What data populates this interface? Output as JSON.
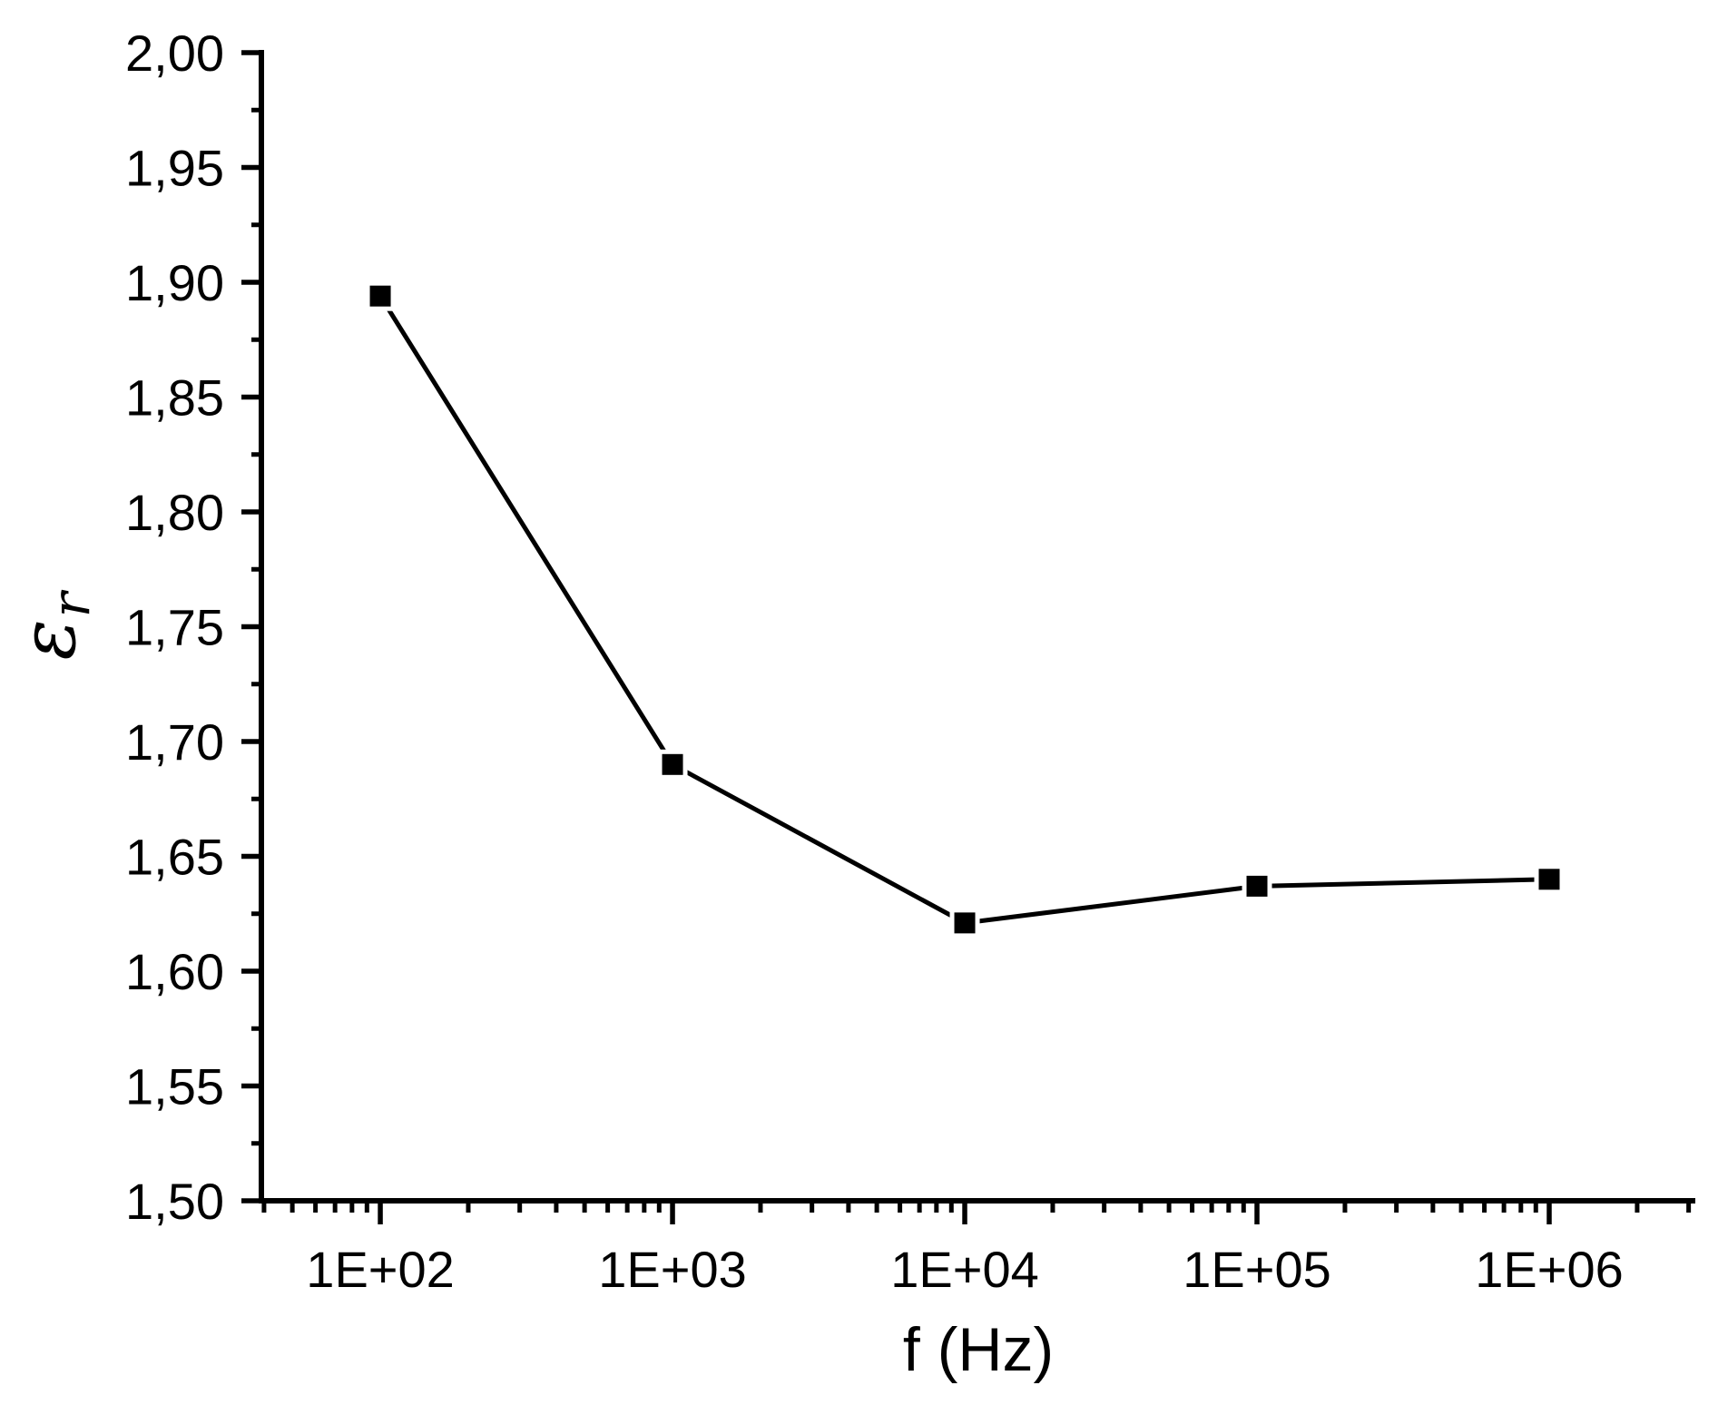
{
  "figure": {
    "background": "#ffffff",
    "ink_color": "#000000"
  },
  "chart_data": {
    "type": "line",
    "title": "",
    "xlabel": "f (Hz)",
    "ylabel": "εr",
    "ylabel_parts": {
      "base": "ε",
      "sub": "r"
    },
    "x_scale": "log",
    "grid": false,
    "legend": "none",
    "x": [
      100,
      1000,
      10000,
      100000,
      1000000
    ],
    "series": [
      {
        "name": "εr",
        "marker": "filled-square",
        "color": "#000000",
        "values": [
          1.894,
          1.69,
          1.621,
          1.637,
          1.64
        ]
      }
    ],
    "axes": {
      "x": {
        "label": "f (Hz)",
        "scale": "log",
        "log10_range": [
          1.593,
          6.5
        ],
        "major_tick_log10": [
          2,
          3,
          4,
          5,
          6
        ],
        "tick_labels": [
          "1E+02",
          "1E+03",
          "1E+04",
          "1E+05",
          "1E+06"
        ],
        "minor_ticks": "log multiples 2-9 per decade"
      },
      "y": {
        "label": "εr",
        "range": [
          1.5,
          2.0
        ],
        "major_step": 0.05,
        "minor_step": 0.025,
        "tick_labels": [
          "1,50",
          "1,55",
          "1,60",
          "1,65",
          "1,70",
          "1,75",
          "1,80",
          "1,85",
          "1,90",
          "1,95",
          "2,00"
        ],
        "decimal_separator": ","
      }
    }
  }
}
